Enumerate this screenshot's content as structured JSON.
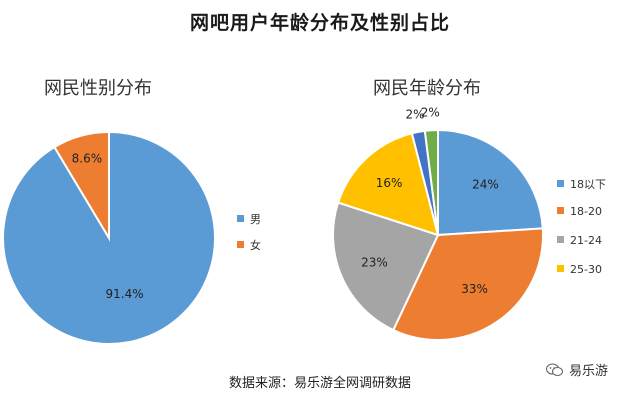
{
  "page": {
    "title": "网吧用户年龄分布及性别占比",
    "source": "数据来源：易乐游全网调研数据",
    "watermark": "易乐游"
  },
  "chart_data": [
    {
      "type": "pie",
      "title": "网民性别分布",
      "categories": [
        "男",
        "女"
      ],
      "values": [
        91.4,
        8.6
      ],
      "data_labels": [
        "91.4%",
        "8.6%"
      ],
      "colors": [
        "#5B9BD5",
        "#ED7D31"
      ],
      "legend_position": "right"
    },
    {
      "type": "pie",
      "title": "网民年龄分布",
      "categories": [
        "18以下",
        "18-20",
        "21-24",
        "25-30",
        "",
        ""
      ],
      "legend_entries": [
        "18以下",
        "18-20",
        "21-24",
        "25-30"
      ],
      "values": [
        24,
        33,
        23,
        16,
        2,
        2
      ],
      "data_labels": [
        "24%",
        "33%",
        "23%",
        "16%",
        "2%",
        "2%"
      ],
      "colors": [
        "#5B9BD5",
        "#ED7D31",
        "#A5A5A5",
        "#FFC000",
        "#4472C4",
        "#70AD47"
      ],
      "legend_position": "right"
    }
  ]
}
